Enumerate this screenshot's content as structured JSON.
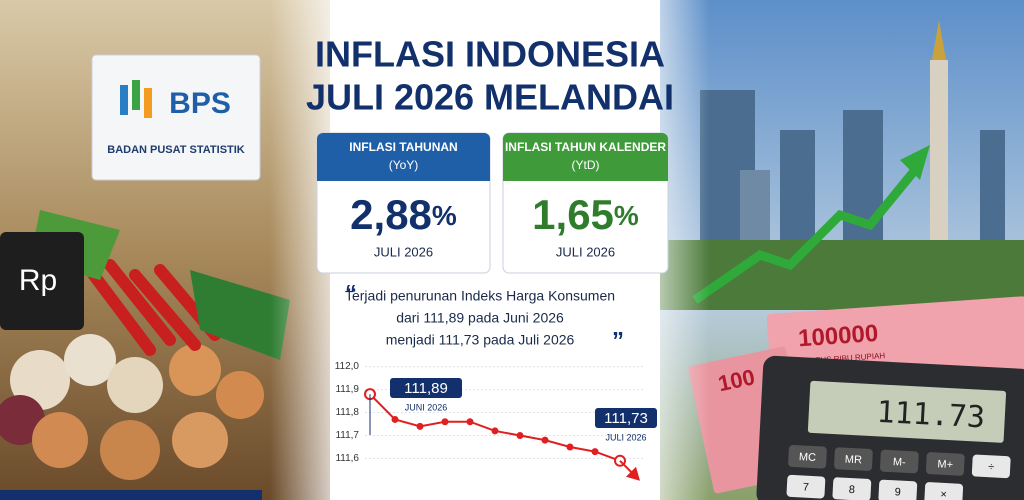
{
  "title": [
    "INFLASI INDONESIA",
    "JULI 2026 MELANDAI"
  ],
  "sign": {
    "logo": "BPS",
    "name": "BADAN PUSAT STATISTIK"
  },
  "price_tag": "Rp",
  "cards": [
    {
      "heading": [
        "INFLASI TAHUNAN",
        "(YoY)"
      ],
      "value": "2,88",
      "unit": "%",
      "period": "JULI 2026",
      "color": "#1f5fa8",
      "value_color": "#12306b"
    },
    {
      "heading": [
        "INFLASI TAHUN KALENDER",
        "(YtD)"
      ],
      "value": "1,65",
      "unit": "%",
      "period": "JULI 2026",
      "color": "#3f9a3a",
      "value_color": "#2f7d2c"
    }
  ],
  "quote": [
    "Terjadi penurunan Indeks Harga Konsumen",
    "dari 111,89 pada Juni 2026",
    "menjadi 111,73 pada Juli 2026"
  ],
  "banknote": {
    "amount": "100000",
    "words": "SERATUS RIBU RUPIAH",
    "partial": "100"
  },
  "calculator": {
    "display": "111.73",
    "keys": [
      "MC",
      "MR",
      "M-",
      "M+",
      "÷",
      "7",
      "8",
      "9",
      "×"
    ]
  },
  "chart_data": {
    "type": "line",
    "categories": [
      null,
      null,
      null,
      null,
      null,
      null,
      null,
      null,
      null,
      null,
      null
    ],
    "series": [
      {
        "name": null,
        "color": "#e02020",
        "values": [
          111.88,
          111.77,
          111.74,
          111.76,
          111.76,
          111.72,
          111.7,
          111.68,
          111.65,
          111.63,
          111.59
        ]
      }
    ],
    "ylim": [
      111.55,
      112.02
    ],
    "yticks": [
      {
        "value": 111.6,
        "label": "111,6"
      },
      {
        "value": 111.7,
        "label": "111,7"
      },
      {
        "value": 111.8,
        "label": "111,8"
      },
      {
        "value": 111.9,
        "label": "111,9"
      },
      {
        "value": 112.0,
        "label": "112,0"
      }
    ],
    "grid": true,
    "annotations": [
      {
        "text": "111,89",
        "sub": "JUNI 2026"
      },
      {
        "text": "111,73",
        "sub": "JULI 2026"
      }
    ]
  }
}
